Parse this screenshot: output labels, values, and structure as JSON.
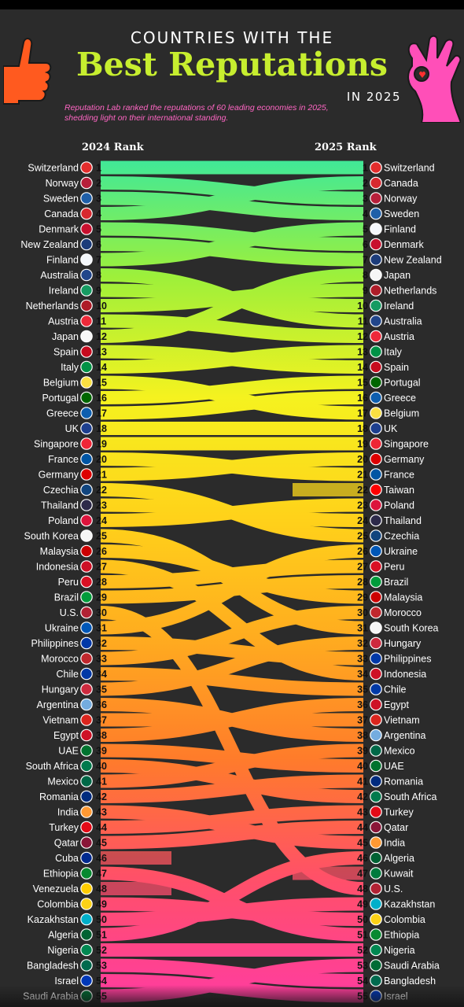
{
  "header": {
    "title_line1": "COUNTRIES WITH THE",
    "title_line2": "Best Reputations",
    "title_line3": "IN 2025",
    "subtitle": "Reputation Lab ranked the reputations of 60 leading economies in 2025, shedding light on their international standing.",
    "col_left": "2024 Rank",
    "col_right": "2025 Rank"
  },
  "chart_data": {
    "type": "bump",
    "x": [
      "2024 Rank",
      "2025 Rank"
    ],
    "ranks_2024": [
      "Switzerland",
      "Norway",
      "Sweden",
      "Canada",
      "Denmark",
      "New Zealand",
      "Finland",
      "Australia",
      "Ireland",
      "Netherlands",
      "Austria",
      "Japan",
      "Spain",
      "Italy",
      "Belgium",
      "Portugal",
      "Greece",
      "UK",
      "Singapore",
      "France",
      "Germany",
      "Czechia",
      "Thailand",
      "Poland",
      "South Korea",
      "Malaysia",
      "Indonesia",
      "Peru",
      "Brazil",
      "U.S.",
      "Ukraine",
      "Philippines",
      "Morocco",
      "Chile",
      "Hungary",
      "Argentina",
      "Vietnam",
      "Egypt",
      "UAE",
      "South Africa",
      "Mexico",
      "Romania",
      "India",
      "Turkey",
      "Qatar",
      "Cuba",
      "Ethiopia",
      "Venezuela",
      "Colombia",
      "Kazakhstan",
      "Algeria",
      "Nigeria",
      "Bangladesh",
      "Israel",
      "Saudi Arabia"
    ],
    "ranks_2025": [
      "Switzerland",
      "Canada",
      "Norway",
      "Sweden",
      "Finland",
      "Denmark",
      "New Zealand",
      "Japan",
      "Netherlands",
      "Ireland",
      "Australia",
      "Austria",
      "Italy",
      "Spain",
      "Portugal",
      "Greece",
      "Belgium",
      "UK",
      "Singapore",
      "Germany",
      "France",
      "Taiwan",
      "Poland",
      "Thailand",
      "Czechia",
      "Ukraine",
      "Peru",
      "Brazil",
      "Malaysia",
      "Morocco",
      "South Korea",
      "Hungary",
      "Philippines",
      "Indonesia",
      "Chile",
      "Egypt",
      "Vietnam",
      "Argentina",
      "Mexico",
      "UAE",
      "Romania",
      "South Africa",
      "Turkey",
      "Qatar",
      "India",
      "Algeria",
      "Kuwait",
      "U.S.",
      "Kazakhstan",
      "Colombia",
      "Ethiopia",
      "Nigeria",
      "Saudi Arabia",
      "Bangladesh",
      "Israel"
    ],
    "flag_colors": {
      "Switzerland": "#e32d2d",
      "Norway": "#b71f3a",
      "Sweden": "#1f5fa8",
      "Canada": "#d7282f",
      "Denmark": "#c8102e",
      "New Zealand": "#1c3c7a",
      "Finland": "#f4f7fb",
      "Australia": "#21468b",
      "Ireland": "#169b62",
      "Netherlands": "#ae1c28",
      "Austria": "#ed2939",
      "Japan": "#f6f6f6",
      "Spain": "#c60b1e",
      "Italy": "#009246",
      "Belgium": "#fae042",
      "Portugal": "#006600",
      "Greece": "#0d5eaf",
      "UK": "#1d3f8f",
      "Singapore": "#ee2536",
      "France": "#0055a4",
      "Germany": "#dd0000",
      "Czechia": "#11457e",
      "Thailand": "#2d2a4a",
      "Poland": "#dc143c",
      "South Korea": "#f5f5f5",
      "Malaysia": "#cc0001",
      "Indonesia": "#ce1126",
      "Peru": "#d91023",
      "Brazil": "#009c3b",
      "U.S.": "#b22234",
      "Ukraine": "#0057b7",
      "Philippines": "#0038a8",
      "Morocco": "#c1272d",
      "Chile": "#0039a6",
      "Hungary": "#cd2a3e",
      "Argentina": "#74acdf",
      "Vietnam": "#da251d",
      "Egypt": "#ce1126",
      "UAE": "#00732f",
      "South Africa": "#007a4d",
      "Mexico": "#006847",
      "Romania": "#002b7f",
      "India": "#ff9933",
      "Turkey": "#e30a17",
      "Qatar": "#8a1538",
      "Cuba": "#002a8f",
      "Ethiopia": "#078930",
      "Venezuela": "#ffcc00",
      "Colombia": "#fcd116",
      "Kazakhstan": "#00afca",
      "Algeria": "#006233",
      "Nigeria": "#008751",
      "Bangladesh": "#006a4e",
      "Israel": "#0038b8",
      "Saudi Arabia": "#006c35",
      "Taiwan": "#fe0000",
      "Kuwait": "#007a3d"
    },
    "gradient_stops": [
      "#3ee89a",
      "#9ef03a",
      "#f5f21f",
      "#ffd21a",
      "#ffac1f",
      "#ff7c2a",
      "#ff5068",
      "#ff3d9e"
    ]
  },
  "colors": {
    "background": "#2b2b2b",
    "title_accent": "#c7ee2f",
    "subtitle": "#ff66c4",
    "thumb_hand": "#ff5a1f",
    "ok_hand": "#ff4fb8"
  }
}
